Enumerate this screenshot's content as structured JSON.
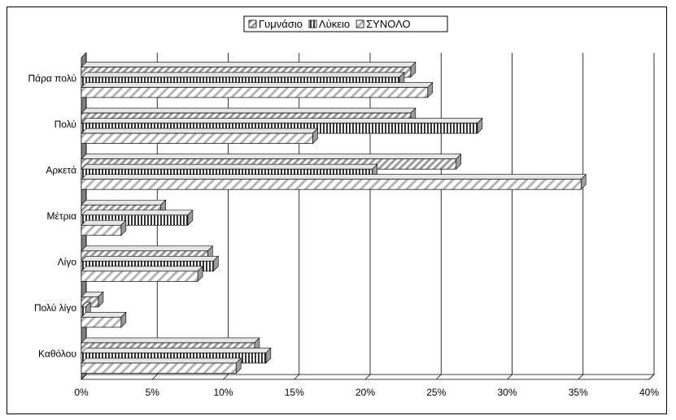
{
  "chart_data": {
    "type": "bar",
    "orientation": "horizontal",
    "style": "3d-clustered-bar",
    "categories": [
      "Καθόλου",
      "Πολύ λίγο",
      "Λίγο",
      "Μέτρια",
      "Αρκετά",
      "Πολύ",
      "Πάρα πολύ"
    ],
    "series": [
      {
        "name": "Γυμνάσιο",
        "values": [
          12.2,
          1.2,
          8.9,
          5.6,
          26.4,
          23.2,
          23.2
        ],
        "pattern": "diagonal-hatch",
        "color": "#bfbfbf"
      },
      {
        "name": "Λύκειο",
        "values": [
          13.0,
          0.3,
          9.3,
          7.5,
          20.5,
          27.9,
          22.4
        ],
        "pattern": "vertical-stripes",
        "color": "#808080"
      },
      {
        "name": "ΣΥΝΟΛΟ",
        "values": [
          10.9,
          2.8,
          8.2,
          2.8,
          35.2,
          16.3,
          24.4
        ],
        "pattern": "wide-diagonal-hatch",
        "color": "#d0d0d0"
      }
    ],
    "xlim": [
      0,
      40
    ],
    "x_ticks": [
      "0%",
      "5%",
      "10%",
      "15%",
      "20%",
      "25%",
      "30%",
      "35%",
      "40%"
    ],
    "x_tick_values": [
      0,
      5,
      10,
      15,
      20,
      25,
      30,
      35,
      40
    ],
    "title": "",
    "xlabel": "",
    "ylabel": "",
    "grid": "vertical",
    "legend": "top-center"
  }
}
